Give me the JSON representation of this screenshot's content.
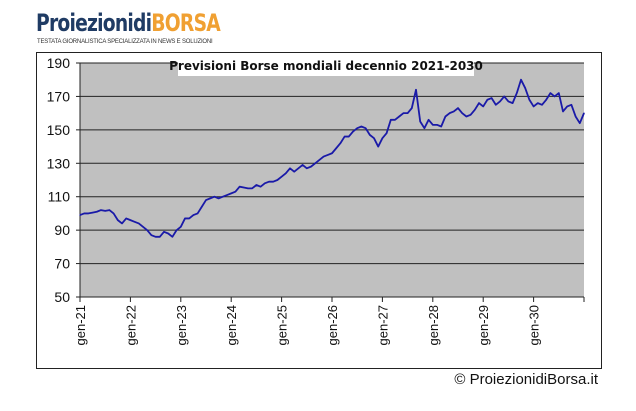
{
  "brand": {
    "name_part1": "Proiezionidi",
    "name_part2": "BORSA",
    "tagline": "TESTATA GIORNALISTICA SPECIALIZZATA IN NEWS E SOLUZIONI"
  },
  "copyright": "© ProiezionidiBorsa.it",
  "chart_data": {
    "type": "line",
    "title": "Previsioni Borse mondiali decennio 2021-2030",
    "xlabel": "",
    "ylabel": "",
    "ylim": [
      50,
      190
    ],
    "yticks": [
      50,
      70,
      90,
      110,
      130,
      150,
      170,
      190
    ],
    "xtick_labels": [
      "gen-21",
      "gen-22",
      "gen-23",
      "gen-24",
      "gen-25",
      "gen-26",
      "gen-27",
      "gen-28",
      "gen-29",
      "gen-30"
    ],
    "x_unit": "months since gen-21",
    "grid": true,
    "line_color": "#1a1aa8",
    "plot_bg": "#c0c0c0",
    "values": [
      99,
      100,
      100,
      100.5,
      101,
      102,
      101.5,
      102,
      100,
      96,
      94,
      97,
      96,
      95,
      94,
      92,
      90,
      87,
      86,
      86,
      89,
      88,
      86,
      90,
      92,
      97,
      97,
      99,
      100,
      104,
      108,
      109,
      110,
      109,
      110,
      111,
      112,
      113,
      116,
      115.5,
      115,
      115,
      117,
      116,
      118,
      119,
      119,
      120,
      122,
      124,
      127,
      125,
      127,
      129,
      127,
      128,
      130,
      132,
      134,
      135,
      136,
      139,
      142,
      146,
      146,
      149,
      151,
      152,
      151,
      147,
      145,
      140,
      145,
      148,
      156,
      156,
      158,
      160,
      160,
      163,
      174,
      155,
      151,
      156,
      153,
      153,
      152,
      158,
      160,
      161,
      163,
      160,
      158,
      159,
      162,
      166,
      164,
      168,
      169,
      165,
      167,
      170,
      167,
      166,
      172,
      180,
      175,
      168,
      164,
      166,
      165,
      168,
      172,
      170,
      172,
      161,
      164,
      165,
      158,
      154,
      160
    ]
  }
}
